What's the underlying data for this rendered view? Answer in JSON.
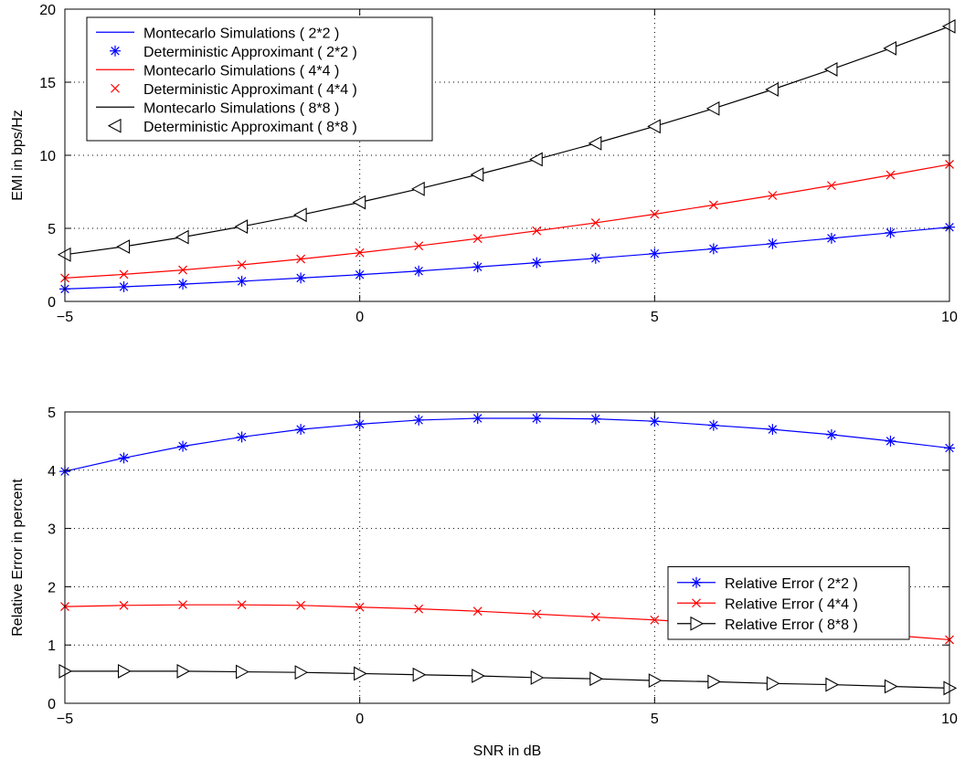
{
  "chart_data": [
    {
      "type": "line",
      "title": "",
      "xlabel": "",
      "ylabel": "EMI in bps/Hz",
      "xlim": [
        -5,
        10
      ],
      "ylim": [
        0,
        20
      ],
      "xticks": [
        -5,
        0,
        5,
        10
      ],
      "yticks": [
        0,
        5,
        10,
        15,
        20
      ],
      "xtick_labels": [
        "−5",
        "0",
        "5",
        "10"
      ],
      "ytick_labels": [
        "0",
        "5",
        "10",
        "15",
        "20"
      ],
      "grid": true,
      "legend_position": "top-left",
      "x": [
        -5,
        -4,
        -3,
        -2,
        -1,
        0,
        1,
        2,
        3,
        4,
        5,
        6,
        7,
        8,
        9,
        10
      ],
      "series": [
        {
          "name": "Montecarlo Simulations ( 2*2 )",
          "color": "#0000ff",
          "style": "line",
          "values": [
            0.85,
            1.0,
            1.18,
            1.38,
            1.6,
            1.83,
            2.08,
            2.36,
            2.65,
            2.95,
            3.27,
            3.6,
            3.95,
            4.32,
            4.7,
            5.08
          ]
        },
        {
          "name": "Deterministic Approximant ( 2*2 )",
          "color": "#0000ff",
          "style": "marker",
          "marker": "asterisk",
          "values": [
            0.85,
            1.0,
            1.18,
            1.38,
            1.6,
            1.83,
            2.08,
            2.36,
            2.65,
            2.95,
            3.27,
            3.6,
            3.95,
            4.32,
            4.7,
            5.08
          ]
        },
        {
          "name": "Montecarlo Simulations ( 4*4 )",
          "color": "#ff0000",
          "style": "line",
          "values": [
            1.6,
            1.85,
            2.15,
            2.5,
            2.9,
            3.33,
            3.8,
            4.3,
            4.83,
            5.38,
            5.97,
            6.6,
            7.25,
            7.93,
            8.65,
            9.38
          ]
        },
        {
          "name": "Deterministic Approximant ( 4*4 )",
          "color": "#ff0000",
          "style": "marker",
          "marker": "x",
          "values": [
            1.6,
            1.85,
            2.15,
            2.5,
            2.9,
            3.33,
            3.8,
            4.3,
            4.83,
            5.38,
            5.97,
            6.6,
            7.25,
            7.93,
            8.65,
            9.38
          ]
        },
        {
          "name": "Montecarlo Simulations ( 8*8 )",
          "color": "#000000",
          "style": "line",
          "values": [
            3.2,
            3.75,
            4.4,
            5.12,
            5.92,
            6.78,
            7.7,
            8.68,
            9.72,
            10.82,
            11.98,
            13.2,
            14.5,
            15.88,
            17.32,
            18.82
          ]
        },
        {
          "name": "Deterministic Approximant ( 8*8 )",
          "color": "#000000",
          "style": "marker",
          "marker": "triangle-left",
          "values": [
            3.2,
            3.75,
            4.4,
            5.12,
            5.92,
            6.78,
            7.7,
            8.68,
            9.72,
            10.82,
            11.98,
            13.2,
            14.5,
            15.88,
            17.32,
            18.82
          ]
        }
      ]
    },
    {
      "type": "line",
      "title": "",
      "xlabel": "SNR in dB",
      "ylabel": "Relative Error in percent",
      "xlim": [
        -5,
        10
      ],
      "ylim": [
        0,
        5
      ],
      "xticks": [
        -5,
        0,
        5,
        10
      ],
      "yticks": [
        0,
        1,
        2,
        3,
        4,
        5
      ],
      "xtick_labels": [
        "−5",
        "0",
        "5",
        "10"
      ],
      "ytick_labels": [
        "0",
        "1",
        "2",
        "3",
        "4",
        "5"
      ],
      "grid": true,
      "legend_position": "center-right",
      "x": [
        -5,
        -4,
        -3,
        -2,
        -1,
        0,
        1,
        2,
        3,
        4,
        5,
        6,
        7,
        8,
        9,
        10
      ],
      "series": [
        {
          "name": "Relative Error ( 2*2 )",
          "color": "#0000ff",
          "marker": "asterisk",
          "values": [
            3.98,
            4.21,
            4.41,
            4.57,
            4.7,
            4.79,
            4.86,
            4.89,
            4.89,
            4.88,
            4.84,
            4.77,
            4.7,
            4.61,
            4.5,
            4.38
          ]
        },
        {
          "name": "Relative Error ( 4*4 )",
          "color": "#ff0000",
          "marker": "x",
          "values": [
            1.66,
            1.68,
            1.69,
            1.69,
            1.68,
            1.65,
            1.62,
            1.58,
            1.53,
            1.48,
            1.43,
            1.37,
            1.31,
            1.24,
            1.17,
            1.09
          ]
        },
        {
          "name": "Relative Error ( 8*8 )",
          "color": "#000000",
          "marker": "triangle-right",
          "values": [
            0.55,
            0.55,
            0.55,
            0.54,
            0.53,
            0.51,
            0.49,
            0.47,
            0.44,
            0.42,
            0.39,
            0.37,
            0.34,
            0.32,
            0.29,
            0.26
          ]
        }
      ]
    }
  ]
}
